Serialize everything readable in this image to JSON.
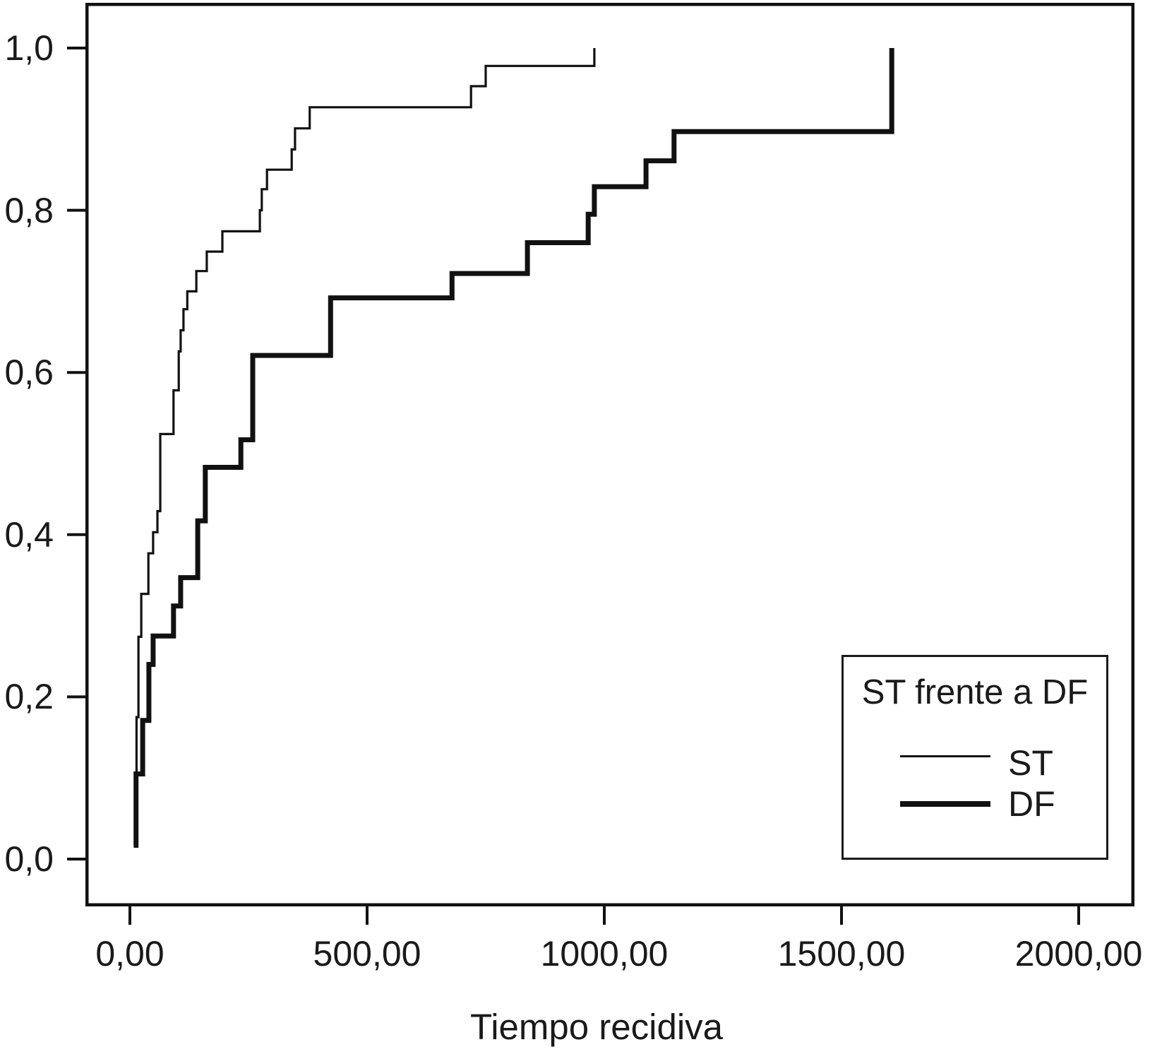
{
  "chart_data": {
    "type": "line",
    "subtype": "step-function (cumulative incidence / Kaplan-Meier style)",
    "title": "",
    "xlabel": "Tiempo recidiva",
    "ylabel": "",
    "xlim": [
      -95,
      2120
    ],
    "ylim": [
      -0.055,
      1.055
    ],
    "grid": false,
    "x_ticks": [
      0,
      500,
      1000,
      1500,
      2000
    ],
    "x_tick_labels": [
      "0,00",
      "500,00",
      "1000,00",
      "1500,00",
      "2000,00"
    ],
    "y_ticks": [
      0.0,
      0.2,
      0.4,
      0.6,
      0.8,
      1.0
    ],
    "y_tick_labels": [
      "0,0",
      "0,2",
      "0,4",
      "0,6",
      "0,8",
      "1,0"
    ],
    "line_color": "#111111",
    "legend": {
      "title": "ST frente a DF",
      "position": "lower-right",
      "entries": [
        {
          "label": "ST",
          "style": "thin"
        },
        {
          "label": "DF",
          "style": "thick"
        }
      ]
    },
    "series": [
      {
        "name": "ST",
        "style": "thin",
        "stroke_width": 3.2,
        "points": [
          [
            14,
            0.017
          ],
          [
            14,
            0.175
          ],
          [
            18,
            0.175
          ],
          [
            18,
            0.274
          ],
          [
            24,
            0.274
          ],
          [
            24,
            0.327
          ],
          [
            39,
            0.327
          ],
          [
            39,
            0.377
          ],
          [
            49,
            0.377
          ],
          [
            49,
            0.403
          ],
          [
            58,
            0.403
          ],
          [
            58,
            0.429
          ],
          [
            64,
            0.429
          ],
          [
            64,
            0.524
          ],
          [
            92,
            0.524
          ],
          [
            92,
            0.578
          ],
          [
            103,
            0.578
          ],
          [
            103,
            0.626
          ],
          [
            107,
            0.626
          ],
          [
            107,
            0.652
          ],
          [
            113,
            0.652
          ],
          [
            113,
            0.678
          ],
          [
            121,
            0.678
          ],
          [
            121,
            0.7
          ],
          [
            140,
            0.7
          ],
          [
            140,
            0.725
          ],
          [
            162,
            0.725
          ],
          [
            162,
            0.749
          ],
          [
            195,
            0.749
          ],
          [
            195,
            0.774
          ],
          [
            274,
            0.774
          ],
          [
            274,
            0.8
          ],
          [
            278,
            0.8
          ],
          [
            278,
            0.826
          ],
          [
            289,
            0.826
          ],
          [
            289,
            0.85
          ],
          [
            341,
            0.85
          ],
          [
            341,
            0.875
          ],
          [
            348,
            0.875
          ],
          [
            348,
            0.901
          ],
          [
            379,
            0.901
          ],
          [
            379,
            0.927
          ],
          [
            719,
            0.927
          ],
          [
            719,
            0.953
          ],
          [
            750,
            0.953
          ],
          [
            750,
            0.978
          ],
          [
            979,
            0.978
          ],
          [
            979,
            1.0
          ]
        ]
      },
      {
        "name": "DF",
        "style": "thick",
        "stroke_width": 7,
        "points": [
          [
            8,
            0.017
          ],
          [
            13,
            0.017
          ],
          [
            13,
            0.105
          ],
          [
            27,
            0.105
          ],
          [
            27,
            0.171
          ],
          [
            40,
            0.171
          ],
          [
            40,
            0.24
          ],
          [
            49,
            0.24
          ],
          [
            49,
            0.275
          ],
          [
            92,
            0.275
          ],
          [
            92,
            0.312
          ],
          [
            107,
            0.312
          ],
          [
            107,
            0.347
          ],
          [
            143,
            0.347
          ],
          [
            143,
            0.417
          ],
          [
            159,
            0.417
          ],
          [
            159,
            0.483
          ],
          [
            234,
            0.483
          ],
          [
            234,
            0.517
          ],
          [
            259,
            0.517
          ],
          [
            259,
            0.621
          ],
          [
            423,
            0.621
          ],
          [
            423,
            0.692
          ],
          [
            679,
            0.692
          ],
          [
            679,
            0.722
          ],
          [
            838,
            0.722
          ],
          [
            838,
            0.76
          ],
          [
            966,
            0.76
          ],
          [
            966,
            0.795
          ],
          [
            979,
            0.795
          ],
          [
            979,
            0.829
          ],
          [
            1088,
            0.829
          ],
          [
            1088,
            0.861
          ],
          [
            1147,
            0.861
          ],
          [
            1147,
            0.897
          ],
          [
            1606,
            0.897
          ],
          [
            1606,
            1.0
          ]
        ]
      }
    ]
  }
}
